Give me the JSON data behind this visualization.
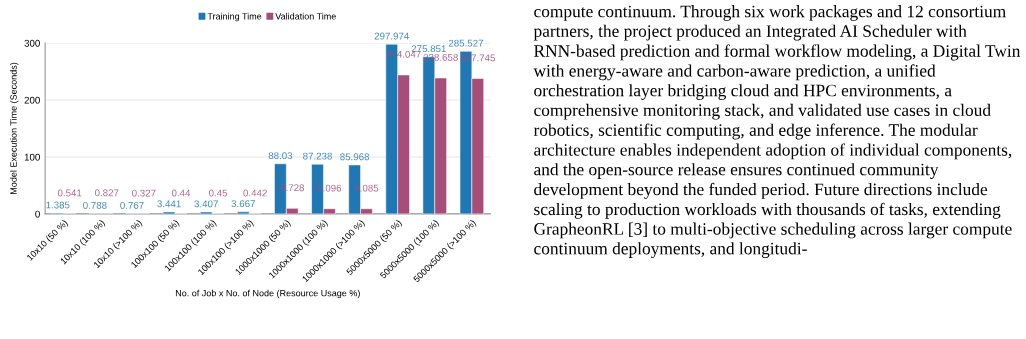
{
  "chart_data": {
    "type": "bar",
    "xlabel": "No. of Job x No. of Node (Resource Usage %)",
    "ylabel": "Model Execution Time (Seconds)",
    "categories": [
      "10x10 (50 %)",
      "10x10 (100 %)",
      "10x10 (>100 %)",
      "100x100 (50 %)",
      "100x100 (100 %)",
      "100x100 (>100 %)",
      "1000x1000 (50 %)",
      "1000x1000 (100 %)",
      "1000x1000 (>100 %)",
      "5000x5000 (50 %)",
      "5000x5000 (100 %)",
      "5000x5000 (>100 %)"
    ],
    "series": [
      {
        "name": "Training Time",
        "color": "#1f77b4",
        "values": [
          1.385,
          0.788,
          0.767,
          3.441,
          3.407,
          3.667,
          88.03,
          87.238,
          85.968,
          297.974,
          275.851,
          285.527
        ]
      },
      {
        "name": "Validation Time",
        "color": "#a64d79",
        "values": [
          0.541,
          0.827,
          0.327,
          0.44,
          0.45,
          0.442,
          9.728,
          9.096,
          9.085,
          244.047,
          238.658,
          237.745
        ]
      }
    ],
    "ylim": [
      0,
      300
    ],
    "yticks": [
      0,
      100,
      200,
      300
    ],
    "grid": "y",
    "legend": "top",
    "data_labels": true,
    "annotations": [
      "compute continuum. Through six work packages and 12 consortium partners, the project produced an Integrated AI Scheduler with RNN-based prediction and formal workflow modeling, a Digital Twin with energy-aware and carbon-aware prediction, a unified orchestration layer bridging cloud and HPC environments, a comprehensive monitoring stack, and validated use cases in cloud robotics, scientific computing, and edge inference. The modular architecture enables independent adoption of individual components, and the open-source release ensures continued community development beyond the funded period. Future directions include scaling to production workloads with thousands of tasks, extending GrapheonRL [3] to multi-objective scheduling across larger compute continuum deployments, and longitudi-"
    ]
  }
}
